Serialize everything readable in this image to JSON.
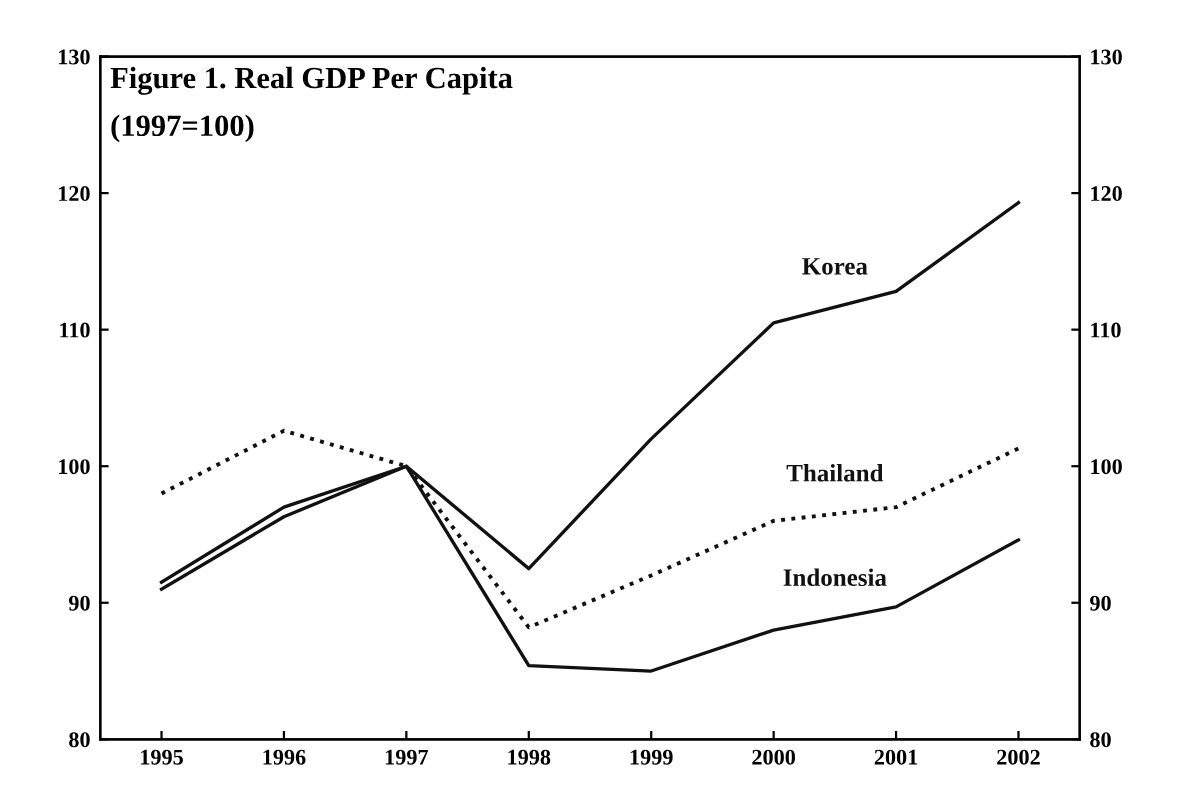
{
  "chart_data": {
    "type": "line",
    "title": "Figure 1. Real GDP Per Capita",
    "subtitle": "(1997=100)",
    "categories": [
      "1995",
      "1996",
      "1997",
      "1998",
      "1999",
      "2000",
      "2001",
      "2002"
    ],
    "series": [
      {
        "name": "Korea",
        "color": "#111111",
        "line_style": "solid",
        "values": [
          91.5,
          97,
          100,
          92.5,
          102,
          110.5,
          112.8,
          119.3
        ]
      },
      {
        "name": "Thailand",
        "color": "#111111",
        "line_style": "dotted",
        "values": [
          98,
          102.6,
          100,
          88.2,
          92,
          96,
          97,
          101.3
        ]
      },
      {
        "name": "Indonesia",
        "color": "#111111",
        "line_style": "solid",
        "values": [
          91,
          96.3,
          100,
          85.4,
          85,
          88,
          89.7,
          94.6
        ]
      }
    ],
    "ylim": [
      80,
      130
    ],
    "yticks": [
      80,
      90,
      100,
      110,
      120,
      130
    ],
    "y2lim": [
      80,
      130
    ],
    "y2ticks": [
      80,
      90,
      100,
      110,
      120,
      130
    ],
    "grid": false,
    "legend": false,
    "marker": "none"
  }
}
